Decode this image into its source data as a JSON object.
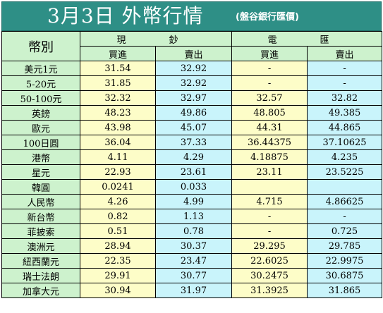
{
  "title": "3月3日 外幣行情",
  "subtitle": "(盤谷銀行匯價)",
  "headers": {
    "currency": "幣別",
    "cash": "現　鈔",
    "tt": "電　匯",
    "buy": "買進",
    "sell": "賣出"
  },
  "rows": [
    {
      "name": "美元1元",
      "cash_buy": "31.54",
      "cash_sell": "32.92",
      "tt_buy": "-",
      "tt_sell": "-"
    },
    {
      "name": "5-20元",
      "cash_buy": "31.85",
      "cash_sell": "32.92",
      "tt_buy": "-",
      "tt_sell": "-"
    },
    {
      "name": "50-100元",
      "cash_buy": "32.32",
      "cash_sell": "32.97",
      "tt_buy": "32.57",
      "tt_sell": "32.82"
    },
    {
      "name": "英鎊",
      "cash_buy": "48.23",
      "cash_sell": "49.86",
      "tt_buy": "48.805",
      "tt_sell": "49.385"
    },
    {
      "name": "歐元",
      "cash_buy": "43.98",
      "cash_sell": "45.07",
      "tt_buy": "44.31",
      "tt_sell": "44.865"
    },
    {
      "name": "100日圓",
      "cash_buy": "36.04",
      "cash_sell": "37.33",
      "tt_buy": "36.44375",
      "tt_sell": "37.10625"
    },
    {
      "name": "港幣",
      "cash_buy": "4.11",
      "cash_sell": "4.29",
      "tt_buy": "4.18875",
      "tt_sell": "4.235"
    },
    {
      "name": "星元",
      "cash_buy": "22.93",
      "cash_sell": "23.61",
      "tt_buy": "23.11",
      "tt_sell": "23.5225"
    },
    {
      "name": "韓圓",
      "cash_buy": "0.0241",
      "cash_sell": "0.033",
      "tt_buy": "",
      "tt_sell": ""
    },
    {
      "name": "人民幣",
      "cash_buy": "4.26",
      "cash_sell": "4.99",
      "tt_buy": "4.715",
      "tt_sell": "4.86625"
    },
    {
      "name": "新台幣",
      "cash_buy": "0.82",
      "cash_sell": "1.13",
      "tt_buy": "-",
      "tt_sell": "-"
    },
    {
      "name": "菲披索",
      "cash_buy": "0.51",
      "cash_sell": "0.78",
      "tt_buy": "-",
      "tt_sell": "0.725"
    },
    {
      "name": "澳洲元",
      "cash_buy": "28.94",
      "cash_sell": "30.37",
      "tt_buy": "29.295",
      "tt_sell": "29.785"
    },
    {
      "name": "紐西蘭元",
      "cash_buy": "22.35",
      "cash_sell": "23.47",
      "tt_buy": "22.6025",
      "tt_sell": "22.9975"
    },
    {
      "name": "瑞士法朗",
      "cash_buy": "29.91",
      "cash_sell": "30.77",
      "tt_buy": "30.2475",
      "tt_sell": "30.6875"
    },
    {
      "name": "加拿大元",
      "cash_buy": "30.94",
      "cash_sell": "31.97",
      "tt_buy": "31.3925",
      "tt_sell": "31.865"
    }
  ],
  "colors": {
    "title_bg": "#2e8f86",
    "green": "#cdf2cd",
    "yellow": "#fdfdc8",
    "blue": "#c9f4fb"
  }
}
